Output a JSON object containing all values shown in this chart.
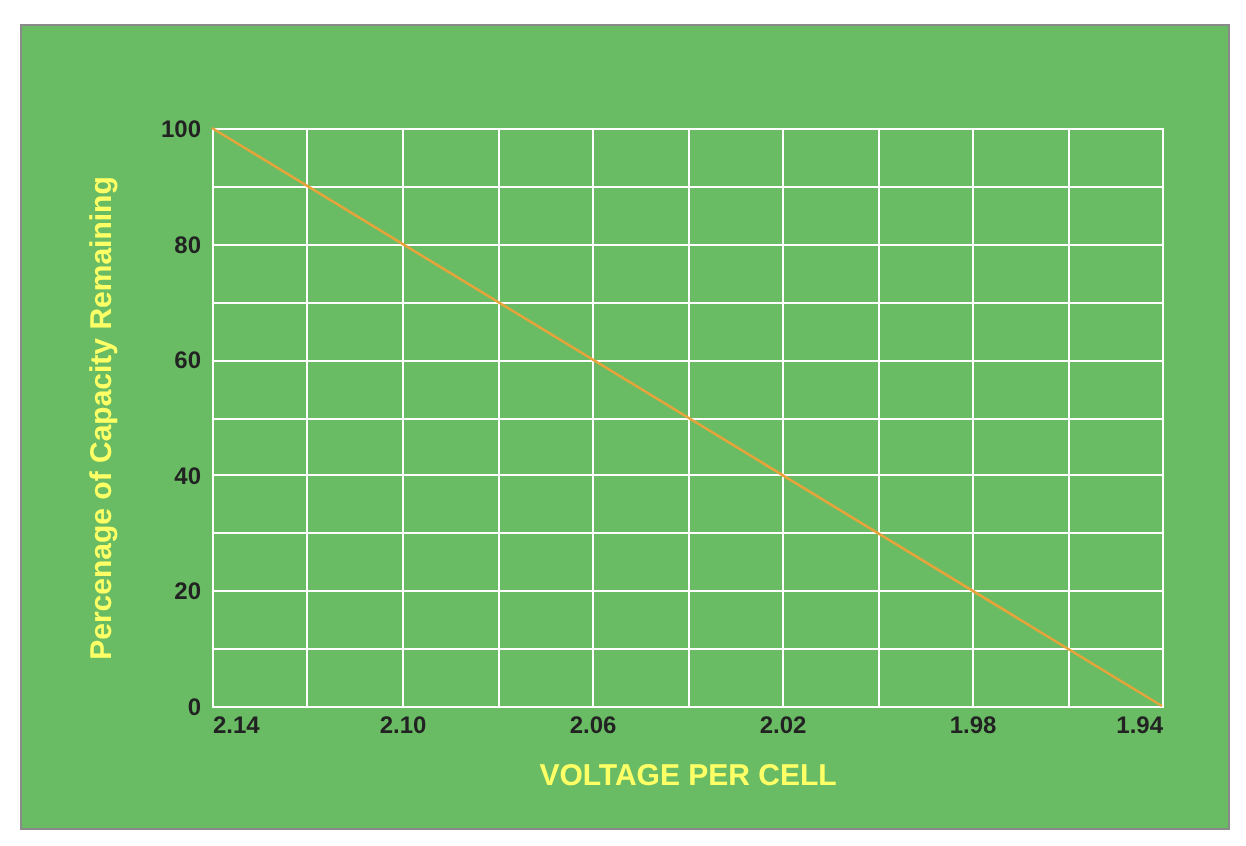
{
  "chart_data": {
    "type": "line",
    "xlabel": "VOLTAGE PER CELL",
    "ylabel": "Percenage of Capacity Remaining",
    "x": [
      2.14,
      1.94
    ],
    "series": [
      {
        "color": "#e8a33a",
        "values": [
          100,
          0
        ]
      }
    ],
    "xlim": [
      2.14,
      1.94
    ],
    "xticks": [
      2.14,
      {
        "value": 2.12,
        "label": null
      },
      {
        "value": 2.1,
        "label": "2.10"
      },
      {
        "value": 2.08,
        "label": null
      },
      2.06,
      {
        "value": 2.04,
        "label": null
      },
      2.02,
      {
        "value": 2,
        "label": null
      },
      1.98,
      {
        "value": 1.96,
        "label": null
      },
      1.94
    ],
    "ylim": [
      0,
      100
    ],
    "yticks": [
      0,
      {
        "value": 10,
        "label": null
      },
      20,
      {
        "value": 30,
        "label": null
      },
      40,
      {
        "value": 50,
        "label": null
      },
      60,
      {
        "value": 70,
        "label": null
      },
      80,
      {
        "value": 90,
        "label": null
      },
      100
    ],
    "grid": true,
    "marker": "none",
    "line_style": "solid"
  }
}
